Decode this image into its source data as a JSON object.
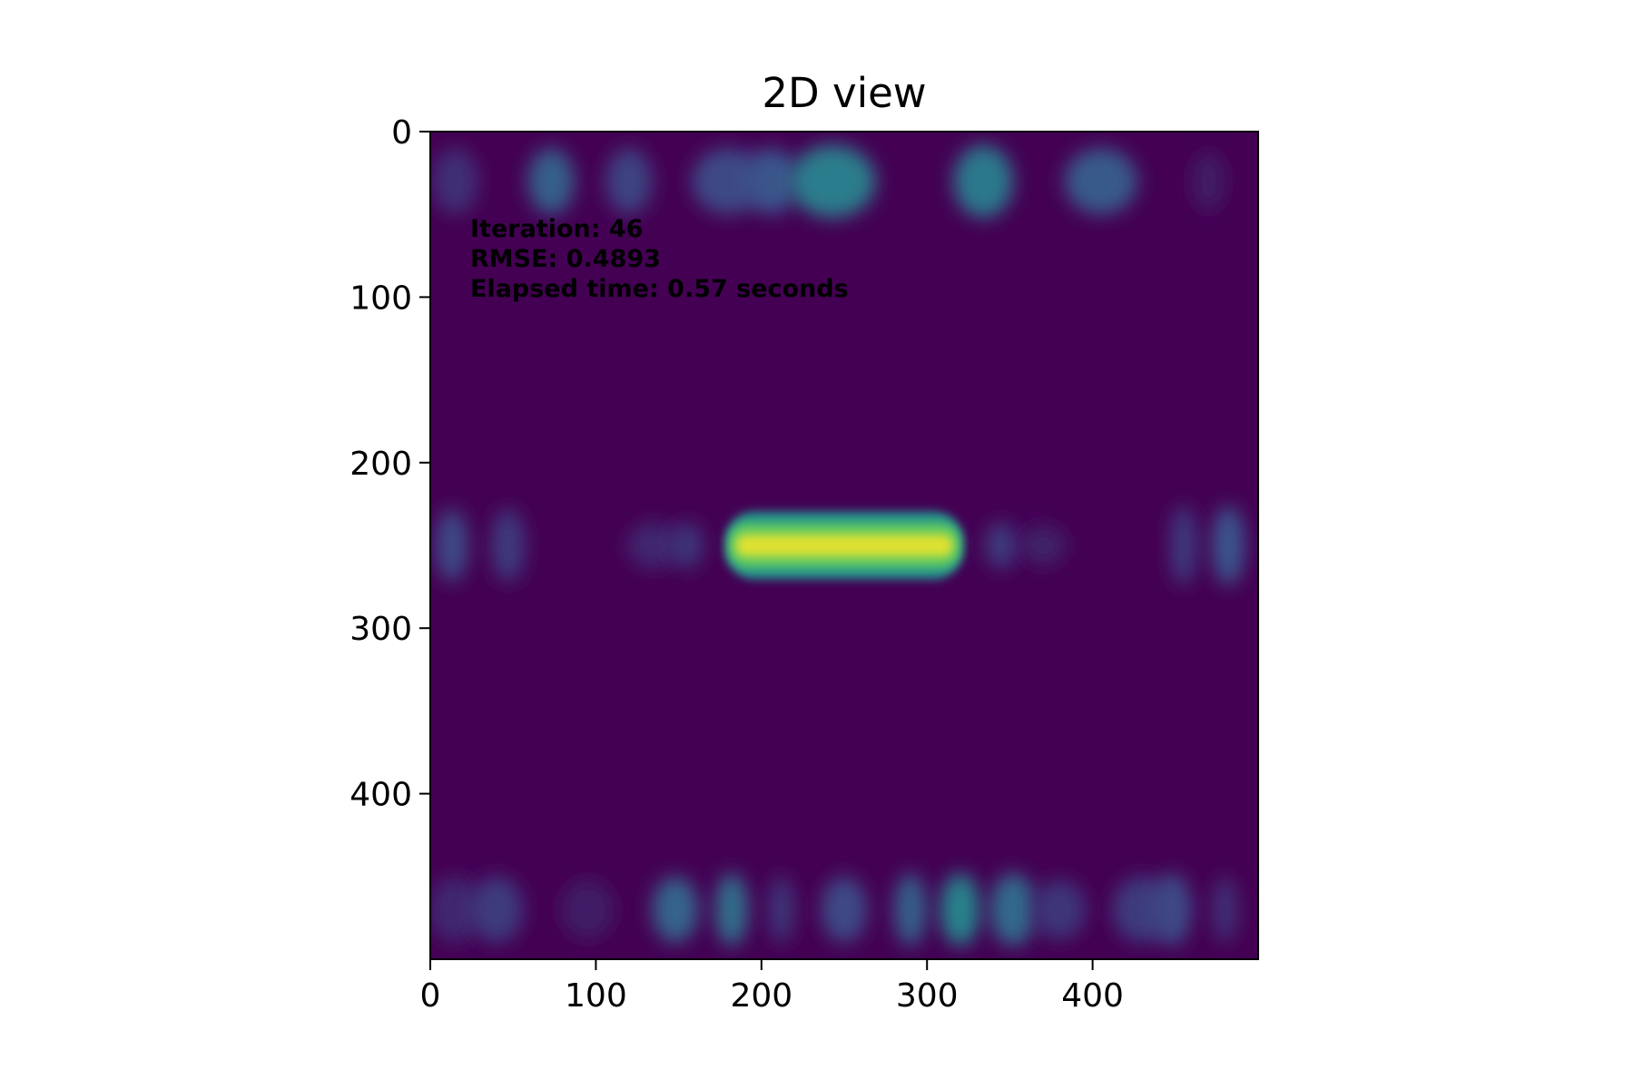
{
  "chart_data": {
    "type": "heatmap",
    "title": "2D view",
    "xlabel": "",
    "ylabel": "",
    "xlim": [
      0,
      500
    ],
    "ylim": [
      500,
      0
    ],
    "x_ticks": [
      0,
      100,
      200,
      300,
      400
    ],
    "y_ticks": [
      0,
      100,
      200,
      300,
      400
    ],
    "y_axis_inverted": true,
    "colormap": "viridis",
    "background_value": 0.0,
    "annotations": [
      "Iteration: 46",
      "RMSE: 0.4893",
      "Elapsed time: 0.57 seconds"
    ],
    "blobs": [
      {
        "x": 15,
        "y": 30,
        "w": 14,
        "h": 20,
        "value": 0.14
      },
      {
        "x": 73,
        "y": 30,
        "w": 14,
        "h": 20,
        "value": 0.3
      },
      {
        "x": 120,
        "y": 30,
        "w": 14,
        "h": 20,
        "value": 0.2
      },
      {
        "x": 180,
        "y": 30,
        "w": 22,
        "h": 20,
        "value": 0.22
      },
      {
        "x": 206,
        "y": 30,
        "w": 16,
        "h": 20,
        "value": 0.26
      },
      {
        "x": 243,
        "y": 30,
        "w": 26,
        "h": 22,
        "value": 0.42
      },
      {
        "x": 334,
        "y": 30,
        "w": 18,
        "h": 22,
        "value": 0.4
      },
      {
        "x": 405,
        "y": 30,
        "w": 22,
        "h": 20,
        "value": 0.28
      },
      {
        "x": 470,
        "y": 30,
        "w": 10,
        "h": 18,
        "value": 0.08
      },
      {
        "x": 13,
        "y": 250,
        "w": 10,
        "h": 22,
        "value": 0.22
      },
      {
        "x": 47,
        "y": 250,
        "w": 10,
        "h": 22,
        "value": 0.18
      },
      {
        "x": 135,
        "y": 250,
        "w": 16,
        "h": 14,
        "value": 0.12
      },
      {
        "x": 155,
        "y": 250,
        "w": 10,
        "h": 14,
        "value": 0.16
      },
      {
        "x": 345,
        "y": 250,
        "w": 10,
        "h": 14,
        "value": 0.18
      },
      {
        "x": 370,
        "y": 250,
        "w": 14,
        "h": 12,
        "value": 0.1
      },
      {
        "x": 455,
        "y": 250,
        "w": 8,
        "h": 24,
        "value": 0.18
      },
      {
        "x": 482,
        "y": 250,
        "w": 10,
        "h": 24,
        "value": 0.26
      },
      {
        "x": 15,
        "y": 470,
        "w": 16,
        "h": 20,
        "value": 0.12
      },
      {
        "x": 40,
        "y": 470,
        "w": 16,
        "h": 20,
        "value": 0.18
      },
      {
        "x": 95,
        "y": 470,
        "w": 16,
        "h": 18,
        "value": 0.08
      },
      {
        "x": 148,
        "y": 470,
        "w": 14,
        "h": 20,
        "value": 0.32
      },
      {
        "x": 182,
        "y": 470,
        "w": 10,
        "h": 22,
        "value": 0.36
      },
      {
        "x": 212,
        "y": 470,
        "w": 8,
        "h": 20,
        "value": 0.16
      },
      {
        "x": 250,
        "y": 470,
        "w": 14,
        "h": 20,
        "value": 0.22
      },
      {
        "x": 290,
        "y": 470,
        "w": 10,
        "h": 22,
        "value": 0.3
      },
      {
        "x": 320,
        "y": 470,
        "w": 12,
        "h": 22,
        "value": 0.44
      },
      {
        "x": 352,
        "y": 470,
        "w": 14,
        "h": 22,
        "value": 0.34
      },
      {
        "x": 380,
        "y": 470,
        "w": 16,
        "h": 18,
        "value": 0.16
      },
      {
        "x": 430,
        "y": 470,
        "w": 18,
        "h": 20,
        "value": 0.18
      },
      {
        "x": 448,
        "y": 470,
        "w": 12,
        "h": 22,
        "value": 0.22
      },
      {
        "x": 480,
        "y": 470,
        "w": 8,
        "h": 20,
        "value": 0.14
      }
    ],
    "bars": [
      {
        "x0": 180,
        "x1": 320,
        "y": 250,
        "h": 12,
        "value": 0.95
      }
    ]
  }
}
